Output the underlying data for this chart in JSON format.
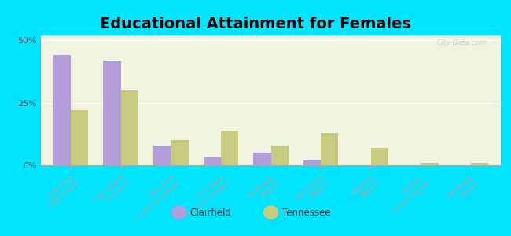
{
  "title": "Educational Attainment for Females",
  "categories": [
    "Less than\nhigh school",
    "High school\nor equiv.",
    "Less than\n1 year of college",
    "1 or more\nyears of college",
    "Associate\ndegree",
    "Bachelor's\ndegree",
    "Master's\ndegree",
    "Profess.\nschool degree",
    "Doctorate\ndegree"
  ],
  "clairfield_values": [
    44,
    42,
    8,
    3,
    5,
    2,
    0,
    0,
    0
  ],
  "tennessee_values": [
    22,
    30,
    10,
    14,
    8,
    13,
    7,
    1,
    1
  ],
  "clairfield_color": "#b39ddb",
  "tennessee_color": "#c8ca7e",
  "background_color": "#00e5ff",
  "plot_bg_color": "#eef4e0",
  "ylabel_ticks": [
    "0%",
    "25%",
    "50%"
  ],
  "ytick_values": [
    0,
    25,
    50
  ],
  "ylim": [
    0,
    52
  ],
  "bar_width": 0.35,
  "legend_labels": [
    "Clairfield",
    "Tennessee"
  ],
  "title_fontsize": 14,
  "watermark": "City-Data.com"
}
